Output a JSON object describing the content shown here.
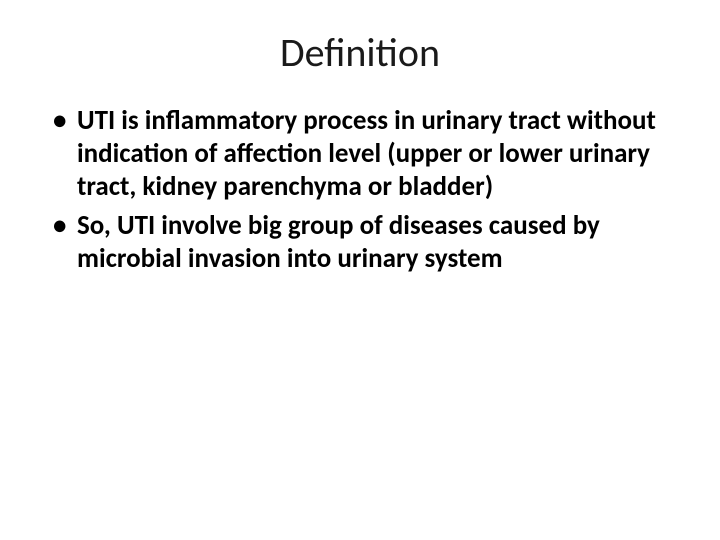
{
  "slide": {
    "title": "Definition",
    "bullets": [
      "UTI is inflammatory process in urinary tract without indication of affection level (upper or lower urinary tract, kidney parenchyma or bladder)",
      "So, UTI involve big group of diseases caused by microbial invasion into urinary system"
    ],
    "title_fontsize": 40,
    "body_fontsize": 27,
    "body_fontweight": 700,
    "background_color": "#ffffff",
    "text_color": "#000000"
  }
}
